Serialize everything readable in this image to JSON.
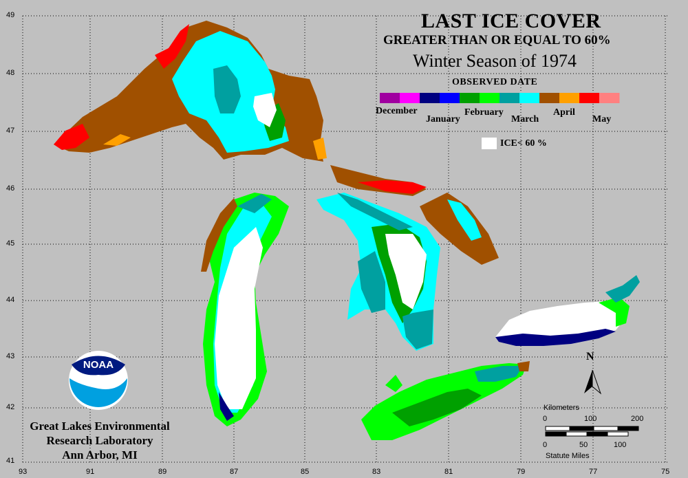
{
  "title": "LAST ICE COVER",
  "subtitle": "GREATER THAN OR EQUAL TO 60%",
  "season": "Winter Season of 1974",
  "legend": {
    "heading": "OBSERVED DATE",
    "months": [
      "December",
      "January",
      "February",
      "March",
      "April",
      "May"
    ],
    "ice_below_label": "ICE< 60 %",
    "colors": [
      "#a000a0",
      "#ff00ff",
      "#000080",
      "#0000ff",
      "#00a000",
      "#00ff00",
      "#00a0a0",
      "#00ffff",
      "#a05000",
      "#ffa000",
      "#ff0000",
      "#ff8080"
    ]
  },
  "grid": {
    "lat_labels": [
      "49",
      "48",
      "47",
      "46",
      "45",
      "44",
      "43",
      "42",
      "41"
    ],
    "lon_labels": [
      "93",
      "91",
      "89",
      "87",
      "85",
      "83",
      "81",
      "79",
      "77",
      "75"
    ]
  },
  "organization": {
    "line1": "Great Lakes Environmental",
    "line2": "Research Laboratory",
    "line3": "Ann Arbor, MI",
    "logo_text": "NOAA"
  },
  "north_label": "N",
  "scalebar": {
    "km_label": "Kilometers",
    "km_ticks": [
      "0",
      "100",
      "200"
    ],
    "mi_ticks": [
      "0",
      "50",
      "100"
    ],
    "mi_label": "Statute Miles"
  }
}
